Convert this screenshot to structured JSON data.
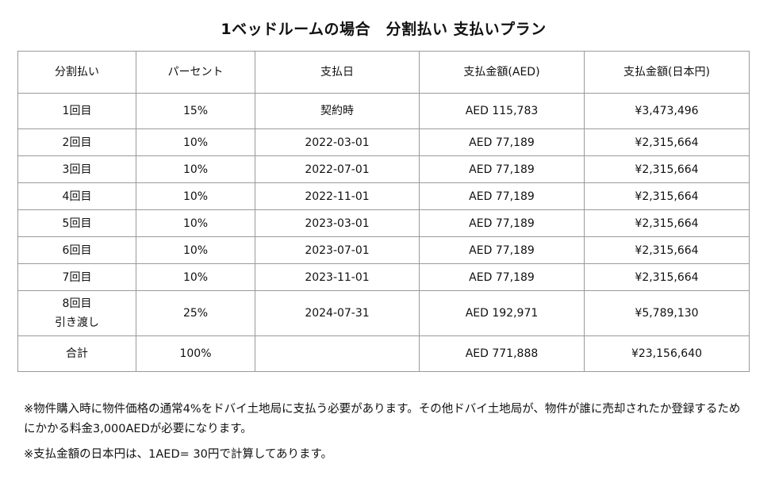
{
  "title": "1ベッドルームの場合　分割払い 支払いプラン",
  "table": {
    "headers": [
      "分割払い",
      "パーセント",
      "支払日",
      "支払金額(AED)",
      "支払金額(日本円)"
    ],
    "rows": [
      {
        "installment": "1回目",
        "installment_sub": "",
        "percent": "15%",
        "date": "契約時",
        "aed": "AED 115,783",
        "jpy": "¥3,473,496"
      },
      {
        "installment": "2回目",
        "installment_sub": "",
        "percent": "10%",
        "date": "2022-03-01",
        "aed": "AED 77,189",
        "jpy": "¥2,315,664"
      },
      {
        "installment": "3回目",
        "installment_sub": "",
        "percent": "10%",
        "date": "2022-07-01",
        "aed": "AED 77,189",
        "jpy": "¥2,315,664"
      },
      {
        "installment": "4回目",
        "installment_sub": "",
        "percent": "10%",
        "date": "2022-11-01",
        "aed": "AED 77,189",
        "jpy": "¥2,315,664"
      },
      {
        "installment": "5回目",
        "installment_sub": "",
        "percent": "10%",
        "date": "2023-03-01",
        "aed": "AED 77,189",
        "jpy": "¥2,315,664"
      },
      {
        "installment": "6回目",
        "installment_sub": "",
        "percent": "10%",
        "date": "2023-07-01",
        "aed": "AED 77,189",
        "jpy": "¥2,315,664"
      },
      {
        "installment": "7回目",
        "installment_sub": "",
        "percent": "10%",
        "date": "2023-11-01",
        "aed": "AED 77,189",
        "jpy": "¥2,315,664"
      },
      {
        "installment": "8回目",
        "installment_sub": "引き渡し",
        "percent": "25%",
        "date": "2024-07-31",
        "aed": "AED 192,971",
        "jpy": "¥5,789,130"
      }
    ],
    "total": {
      "label": "合計",
      "percent": "100%",
      "date": "",
      "aed": "AED 771,888",
      "jpy": "¥23,156,640"
    }
  },
  "notes": [
    "※物件購入時に物件価格の通常4%をドバイ土地局に支払う必要があります。その他ドバイ土地局が、物件が誰に売却されたか登録するためにかかる料金3,000AEDが必要になります。",
    "※支払金額の日本円は、1AED= 30円で計算してあります。"
  ]
}
